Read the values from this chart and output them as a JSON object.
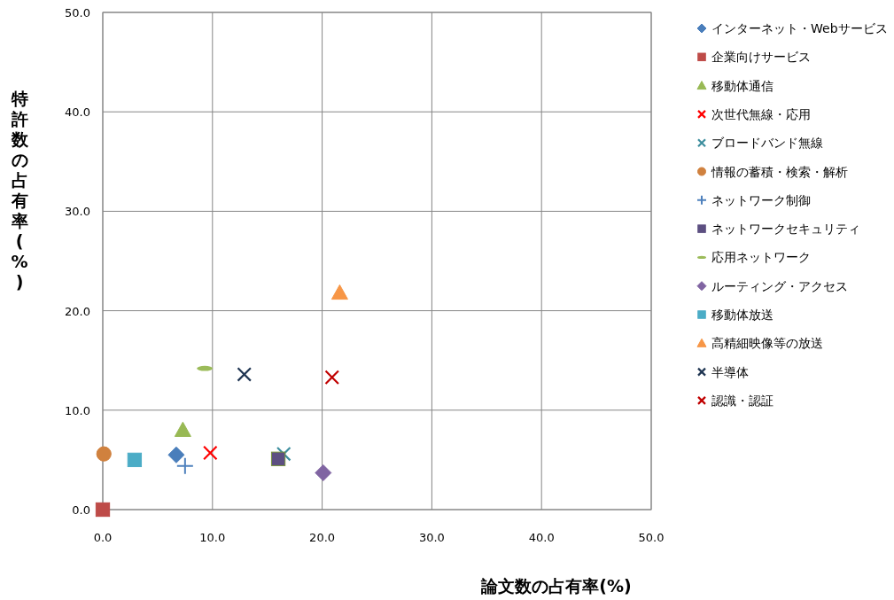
{
  "chart_data": {
    "type": "scatter",
    "xlabel": "論文数の占有率(%)",
    "ylabel": "特許数の占有率(%)",
    "xlim": [
      0,
      50
    ],
    "ylim": [
      0,
      50
    ],
    "xticks": [
      {
        "value": 0,
        "label": "0.0"
      },
      {
        "value": 10,
        "label": "10.0"
      },
      {
        "value": 20,
        "label": "20.0"
      },
      {
        "value": 30,
        "label": "30.0"
      },
      {
        "value": 40,
        "label": "40.0"
      },
      {
        "value": 50,
        "label": "50.0"
      }
    ],
    "yticks": [
      {
        "value": 0,
        "label": "0.0"
      },
      {
        "value": 10,
        "label": "10.0"
      },
      {
        "value": 20,
        "label": "20.0"
      },
      {
        "value": 30,
        "label": "30.0"
      },
      {
        "value": 40,
        "label": "40.0"
      },
      {
        "value": 50,
        "label": "50.0"
      }
    ],
    "grid": true,
    "legend": "right",
    "series": [
      {
        "name": "インターネット・Webサービス",
        "color": "#4a7ebb",
        "marker": "diamond",
        "x": [
          6.7
        ],
        "values": [
          5.5
        ]
      },
      {
        "name": "企業向けサービス",
        "color": "#be4b48",
        "marker": "square",
        "x": [
          0
        ],
        "values": [
          0
        ]
      },
      {
        "name": "移動体通信",
        "color": "#98b954",
        "marker": "triangle",
        "x": [
          7.3
        ],
        "values": [
          8.0
        ]
      },
      {
        "name": "次世代無線・応用",
        "color": "#ff0000",
        "marker": "cross",
        "x": [
          9.8
        ],
        "values": [
          5.7
        ]
      },
      {
        "name": "ブロードバンド無線",
        "color": "#3d8e9e",
        "marker": "cross",
        "x": [
          16.5
        ],
        "values": [
          5.6
        ]
      },
      {
        "name": "情報の蓄積・検索・解析",
        "color": "#d0813e",
        "marker": "circle",
        "x": [
          0.1
        ],
        "values": [
          5.6
        ]
      },
      {
        "name": "ネットワーク制御",
        "color": "#4f81bd",
        "marker": "plus",
        "x": [
          7.5
        ],
        "values": [
          4.4
        ]
      },
      {
        "name": "ネットワークセキュリティ",
        "color": "#5c4f81",
        "marker": "square",
        "x": [
          16.0
        ],
        "values": [
          5.1
        ]
      },
      {
        "name": "応用ネットワーク",
        "color": "#9bbb59",
        "x": [
          9.3
        ],
        "values": [
          14.2
        ]
      },
      {
        "name": "ルーティング・アクセス",
        "color": "#8064a2",
        "marker": "diamond",
        "x": [
          20.1
        ],
        "values": [
          3.7
        ]
      },
      {
        "name": "移動体放送",
        "color": "#4bacc6",
        "marker": "square",
        "x": [
          2.9
        ],
        "values": [
          5.0
        ]
      },
      {
        "name": "高精細映像等の放送",
        "color": "#f79646",
        "marker": "triangle",
        "x": [
          21.6
        ],
        "values": [
          21.8
        ]
      },
      {
        "name": "半導体",
        "color": "#1f3552",
        "marker": "cross",
        "x": [
          12.9
        ],
        "values": [
          13.6
        ]
      },
      {
        "name": "認識・認証",
        "color": "#c00000",
        "marker": "cross",
        "x": [
          20.9
        ],
        "values": [
          13.3
        ]
      }
    ]
  }
}
